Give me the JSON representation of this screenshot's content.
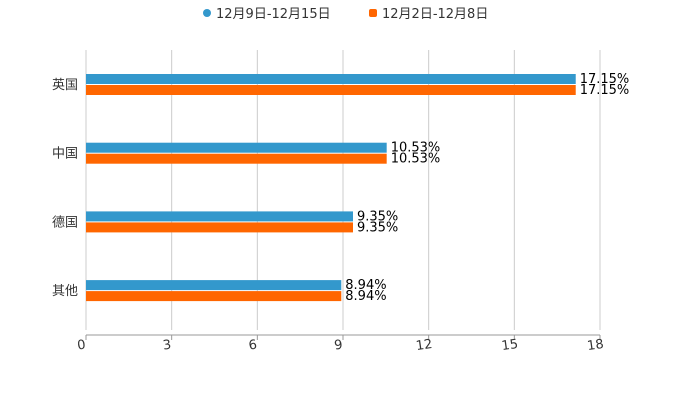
{
  "chart_data": {
    "type": "bar",
    "orientation": "horizontal",
    "categories": [
      "英国",
      "中国",
      "德国",
      "其他"
    ],
    "series": [
      {
        "name": "12月9日-12月15日",
        "color": "#3398cc",
        "values": [
          17.15,
          10.53,
          9.35,
          8.94
        ],
        "labels": [
          "17.15%",
          "10.53%",
          "9.35%",
          "8.94%"
        ]
      },
      {
        "name": "12月2日-12月8日",
        "color": "#ff6600",
        "values": [
          17.15,
          10.53,
          9.35,
          8.94
        ],
        "labels": [
          "17.15%",
          "10.53%",
          "9.35%",
          "8.94%"
        ]
      }
    ],
    "xlim": [
      0,
      18
    ],
    "xticks": [
      "0",
      "3",
      "6",
      "9",
      "12",
      "15",
      "18"
    ],
    "grid": true,
    "legend": "top-center",
    "title": "",
    "xlabel": "",
    "ylabel": ""
  }
}
